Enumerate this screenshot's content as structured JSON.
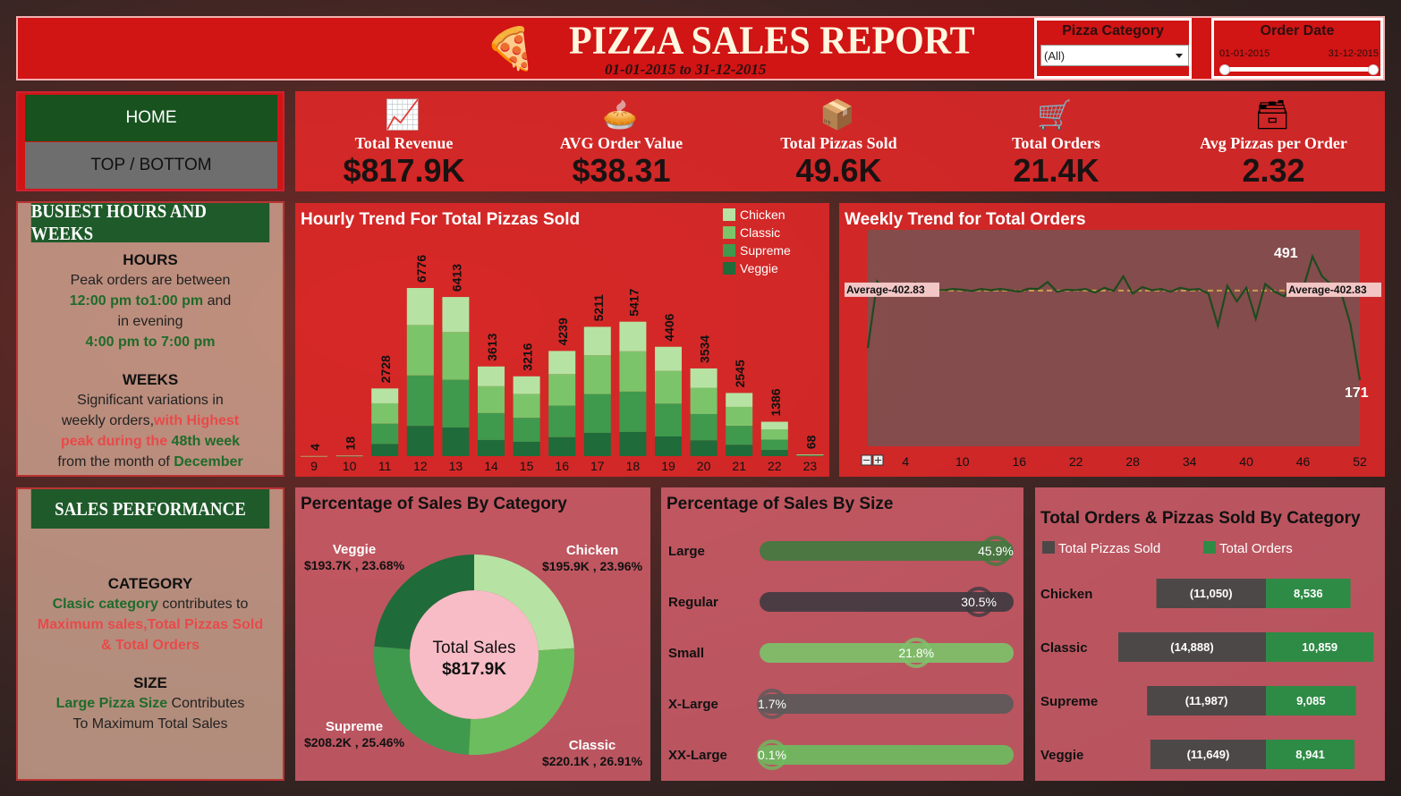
{
  "header": {
    "title": "PIZZA SALES REPORT",
    "subtitle": "01-01-2015 to 31-12-2015",
    "category_filter": {
      "label": "Pizza Category",
      "value": "(All)"
    },
    "date_filter": {
      "label": "Order Date",
      "start": "01-01-2015",
      "end": "31-12-2015"
    }
  },
  "nav": {
    "home": "HOME",
    "top_bottom": "TOP / BOTTOM"
  },
  "kpis": [
    {
      "label": "Total Revenue",
      "value": "$817.9K",
      "icon": "money-chart-icon"
    },
    {
      "label": "AVG Order Value",
      "value": "$38.31",
      "icon": "pizza-icon"
    },
    {
      "label": "Total Pizzas Sold",
      "value": "49.6K",
      "icon": "pizza-box-icon"
    },
    {
      "label": "Total Orders",
      "value": "21.4K",
      "icon": "cart-icon"
    },
    {
      "label": "Avg Pizzas per Order",
      "value": "2.32",
      "icon": "pizza-box-stack-icon"
    }
  ],
  "busiest": {
    "heading": "BUSIEST HOURS AND WEEKS",
    "hours_title": "HOURS",
    "hours_l1": "Peak orders are between",
    "hours_l2a": "12:00 pm to1:00 pm",
    "hours_l2b": " and",
    "hours_l3": "in evening",
    "hours_l4": "4:00 pm to 7:00 pm",
    "weeks_title": "WEEKS",
    "weeks_l1": "Significant variations in",
    "weeks_l2a": "weekly orders,",
    "weeks_l2b": "with Highest",
    "weeks_l3a": "peak during the ",
    "weeks_l3b": "48th week",
    "weeks_l4a": "from the month of ",
    "weeks_l4b": "December"
  },
  "sales_perf": {
    "heading": "SALES PERFORMANCE",
    "cat_title": "CATEGORY",
    "cat_l1a": "Clasic category",
    "cat_l1b": " contributes to",
    "cat_l2": "Maximum sales,Total Pizzas Sold",
    "cat_l3": "& Total Orders",
    "size_title": "SIZE",
    "size_l1a": "Large Pizza Size",
    "size_l1b": " Contributes",
    "size_l2": "To Maximum Total Sales"
  },
  "chart_data": [
    {
      "type": "bar",
      "title": "Hourly Trend For Total Pizzas Sold",
      "stacked": true,
      "categories": [
        "9",
        "10",
        "11",
        "12",
        "13",
        "14",
        "15",
        "16",
        "17",
        "18",
        "19",
        "20",
        "21",
        "22",
        "23"
      ],
      "totals": [
        4,
        18,
        2728,
        6776,
        6413,
        3613,
        3216,
        4239,
        5211,
        5417,
        4406,
        3534,
        2545,
        1386,
        68
      ],
      "series": [
        {
          "name": "Chicken",
          "color": "#b6e3a3"
        },
        {
          "name": "Classic",
          "color": "#7cc46a"
        },
        {
          "name": "Supreme",
          "color": "#3f9a4e"
        },
        {
          "name": "Veggie",
          "color": "#1f6b3a"
        }
      ],
      "legend": "top-right"
    },
    {
      "type": "line",
      "title": "Weekly Trend for Total Orders",
      "x_ticks": [
        "4",
        "10",
        "16",
        "22",
        "28",
        "34",
        "40",
        "46",
        "52"
      ],
      "x": [
        1,
        2,
        3,
        4,
        5,
        6,
        7,
        8,
        9,
        10,
        11,
        12,
        13,
        14,
        15,
        16,
        17,
        18,
        19,
        20,
        21,
        22,
        23,
        24,
        25,
        26,
        27,
        28,
        29,
        30,
        31,
        32,
        33,
        34,
        35,
        36,
        37,
        38,
        39,
        40,
        41,
        42,
        43,
        44,
        45,
        46,
        47,
        48,
        49,
        50,
        51,
        52,
        53
      ],
      "values": [
        254,
        427,
        400,
        400,
        415,
        423,
        409,
        404,
        404,
        407,
        405,
        402,
        407,
        404,
        407,
        404,
        400,
        408,
        407,
        425,
        400,
        405,
        404,
        407,
        398,
        410,
        402,
        440,
        395,
        412,
        404,
        407,
        400,
        410,
        405,
        407,
        395,
        312,
        415,
        375,
        410,
        330,
        420,
        400,
        388,
        420,
        408,
        491,
        440,
        418,
        400,
        316,
        171
      ],
      "average_label": "Average-402.83",
      "average": 402.83,
      "ylim": [
        0,
        560
      ],
      "max_label": "491",
      "min_label": "171"
    },
    {
      "type": "pie",
      "title": "Percentage of Sales By Category",
      "center_label": "Total Sales",
      "center_value": "$817.9K",
      "slices": [
        {
          "name": "Chicken",
          "value": 23.96,
          "label": "$195.9K , 23.96%",
          "color": "#b6e3a3"
        },
        {
          "name": "Classic",
          "value": 26.91,
          "label": "$220.1K , 26.91%",
          "color": "#6cbd5e"
        },
        {
          "name": "Supreme",
          "value": 25.46,
          "label": "$208.2K , 25.46%",
          "color": "#3f9a4e"
        },
        {
          "name": "Veggie",
          "value": 23.68,
          "label": "$193.7K , 23.68%",
          "color": "#1f6b3a"
        }
      ]
    },
    {
      "type": "bar",
      "title": "Percentage of Sales By Size",
      "categories": [
        "Large",
        "Regular",
        "Small",
        "X-Large",
        "XX-Large"
      ],
      "values": [
        45.9,
        30.5,
        21.8,
        1.7,
        0.1
      ],
      "labels": [
        "45.9%",
        "30.5%",
        "21.8%",
        "1.7%",
        "0.1%"
      ],
      "colors": [
        "#3f7a3f",
        "#3e3a40",
        "#7cc46a",
        "#5a5a5a",
        "#6cbd5e"
      ],
      "xlim": [
        0,
        100
      ]
    },
    {
      "type": "bar",
      "title": "Total Orders & Pizzas Sold By Category",
      "categories": [
        "Chicken",
        "Classic",
        "Supreme",
        "Veggie"
      ],
      "series": [
        {
          "name": "Total Pizzas Sold",
          "values": [
            11050,
            14888,
            11987,
            11649
          ],
          "labels": [
            "(11,050)",
            "(14,888)",
            "(11,987)",
            "(11,649)"
          ],
          "color": "#4d4848"
        },
        {
          "name": "Total Orders",
          "values": [
            8536,
            10859,
            9085,
            8941
          ],
          "labels": [
            "8,536",
            "10,859",
            "9,085",
            "8,941"
          ],
          "color": "#2e8b45"
        }
      ],
      "legend": "top"
    }
  ]
}
